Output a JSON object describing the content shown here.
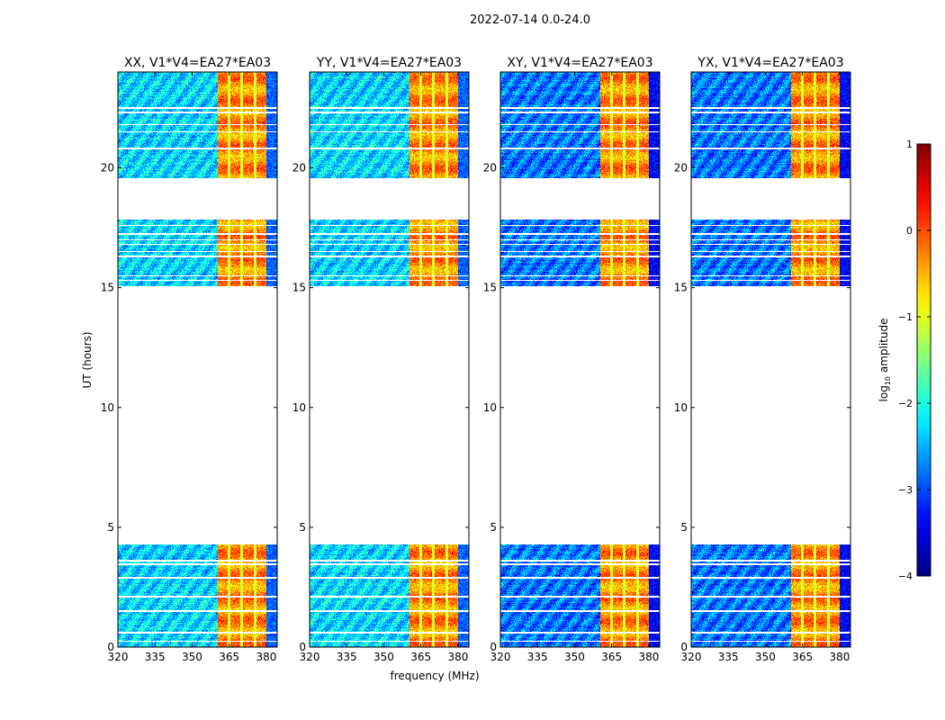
{
  "chart_data": {
    "type": "heatmap",
    "title": "2022-07-14 0.0-24.0",
    "xlabel": "frequency (MHz)",
    "ylabel": "UT (hours)",
    "xlim": [
      320,
      384.4
    ],
    "ylim": [
      0,
      24
    ],
    "xticks": [
      320,
      335,
      350,
      365,
      380
    ],
    "yticks": [
      0,
      5,
      10,
      15,
      20
    ],
    "panels": [
      {
        "title": "XX, V1*V4=EA27*EA03",
        "base_level": -2.3
      },
      {
        "title": "YY, V1*V4=EA27*EA03",
        "base_level": -2.3
      },
      {
        "title": "XY, V1*V4=EA27*EA03",
        "base_level": -2.8
      },
      {
        "title": "YX, V1*V4=EA27*EA03",
        "base_level": -2.8
      }
    ],
    "data_segments_hours": [
      [
        0,
        4.3
      ],
      [
        15.05,
        17.85
      ],
      [
        19.55,
        24
      ]
    ],
    "flagged_rows_hours": [
      0.25,
      0.6,
      1.5,
      2.1,
      2.9,
      3.45,
      3.6,
      15.3,
      15.5,
      16.3,
      16.5,
      16.8,
      17.0,
      17.25,
      17.6,
      20.8,
      21.5,
      21.8,
      22.3,
      22.5
    ],
    "rfi_band_mhz": [
      360.5,
      380.2
    ],
    "rfi_band_level": -0.3,
    "rfi_stripes_mhz": [
      365,
      370,
      375.5
    ],
    "colorbar": {
      "label": "log10 amplitude",
      "label_main": "log",
      "label_sub": "10",
      "label_rest": " amplitude",
      "colormap": "jet",
      "range": [
        -4,
        1
      ],
      "ticks": [
        "−4",
        "−3",
        "−2",
        "−1",
        "0",
        "1"
      ]
    }
  }
}
